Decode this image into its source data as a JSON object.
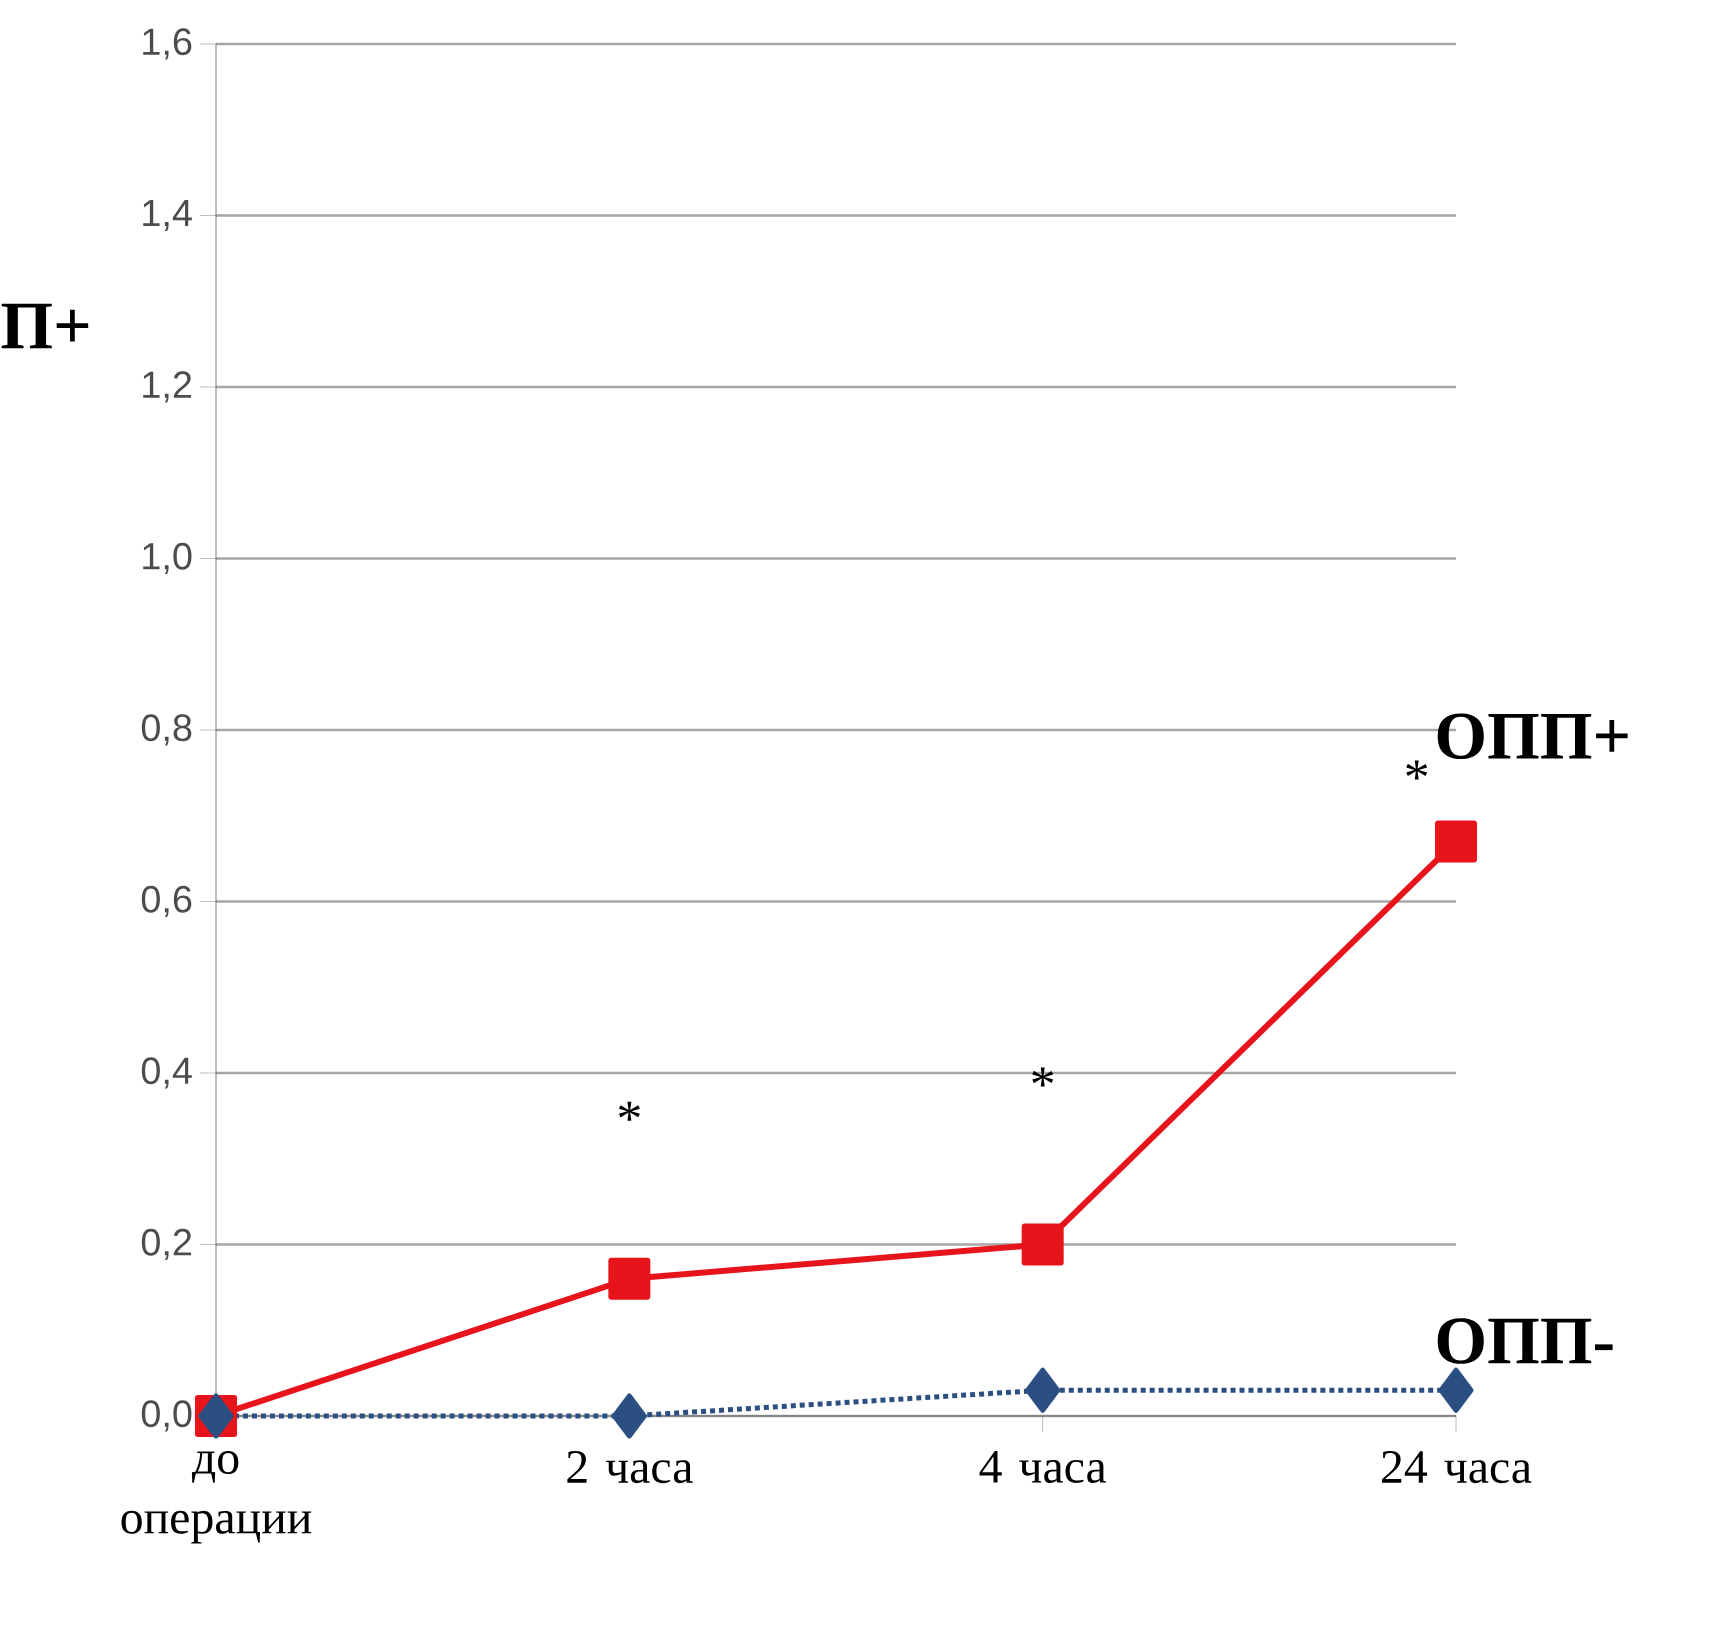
{
  "chart_data": {
    "type": "line",
    "categories": [
      "до операции",
      "2 часа",
      "4 часа",
      "24 часа"
    ],
    "series": [
      {
        "name": "ОПП+",
        "color": "#e8141b",
        "values": [
          0,
          0.16,
          0.2,
          0.67
        ],
        "marker": "square",
        "line_style": "solid"
      },
      {
        "name": "ОПП-",
        "color": "#2b4f80",
        "values": [
          0,
          0,
          0.03,
          0.03
        ],
        "marker": "diamond",
        "line_style": "dotted"
      }
    ],
    "ylim": [
      0,
      1.6
    ],
    "yticks": [
      {
        "value": 0,
        "label": "0,0"
      },
      {
        "value": 0.2,
        "label": "0,2"
      },
      {
        "value": 0.4,
        "label": "0,4"
      },
      {
        "value": 0.6,
        "label": "0,6"
      },
      {
        "value": 0.8,
        "label": "0,8"
      },
      {
        "value": 1.0,
        "label": "1,0"
      },
      {
        "value": 1.2,
        "label": "1,2"
      },
      {
        "value": 1.4,
        "label": "1,4"
      },
      {
        "value": 1.6,
        "label": "1,6"
      }
    ],
    "grid": "y",
    "annotations": [
      "*",
      "*",
      "*",
      "П+"
    ]
  }
}
